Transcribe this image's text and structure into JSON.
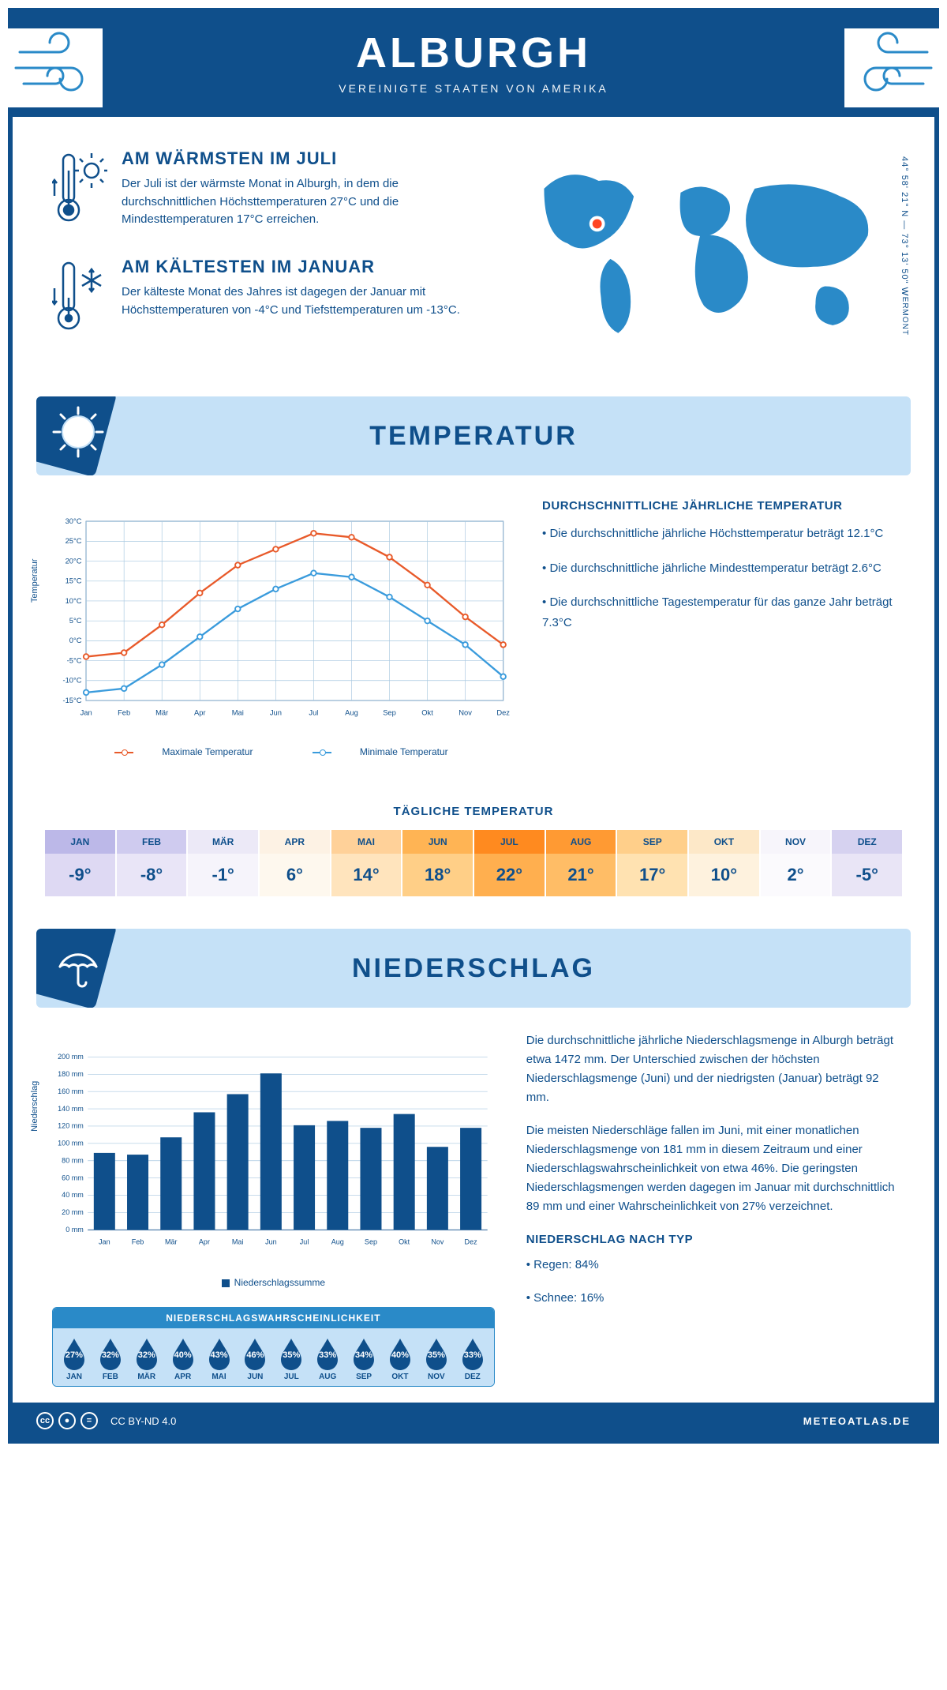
{
  "header": {
    "city": "ALBURGH",
    "country": "VEREINIGTE STAATEN VON AMERIKA"
  },
  "intro": {
    "warm": {
      "title": "AM WÄRMSTEN IM JULI",
      "text": "Der Juli ist der wärmste Monat in Alburgh, in dem die durchschnittlichen Höchsttemperaturen 27°C und die Mindesttemperaturen 17°C erreichen."
    },
    "cold": {
      "title": "AM KÄLTESTEN IM JANUAR",
      "text": "Der kälteste Monat des Jahres ist dagegen der Januar mit Höchsttemperaturen von -4°C und Tiefsttemperaturen um -13°C."
    },
    "coords": "44° 58' 21\" N — 73° 13' 50\" W",
    "state": "VERMONT"
  },
  "temp_banner": "TEMPERATUR",
  "temp_chart": {
    "months": [
      "Jan",
      "Feb",
      "Mär",
      "Apr",
      "Mai",
      "Jun",
      "Jul",
      "Aug",
      "Sep",
      "Okt",
      "Nov",
      "Dez"
    ],
    "max": [
      -4,
      -3,
      4,
      12,
      19,
      23,
      27,
      26,
      21,
      14,
      6,
      -1
    ],
    "min": [
      -13,
      -12,
      -6,
      1,
      8,
      13,
      17,
      16,
      11,
      5,
      -1,
      -9
    ],
    "ylim": [
      -15,
      30
    ],
    "ystep": 5,
    "max_color": "#e85a2a",
    "min_color": "#3a9bdc",
    "grid_color": "#a8c8e0",
    "axis_color": "#0f4f8b",
    "ylabel": "Temperatur",
    "legend_max": "Maximale Temperatur",
    "legend_min": "Minimale Temperatur"
  },
  "temp_info": {
    "title": "DURCHSCHNITTLICHE JÄHRLICHE TEMPERATUR",
    "b1": "• Die durchschnittliche jährliche Höchsttemperatur beträgt 12.1°C",
    "b2": "• Die durchschnittliche jährliche Mindesttemperatur beträgt 2.6°C",
    "b3": "• Die durchschnittliche Tagestemperatur für das ganze Jahr beträgt 7.3°C"
  },
  "daily": {
    "title": "TÄGLICHE TEMPERATUR",
    "months": [
      "JAN",
      "FEB",
      "MÄR",
      "APR",
      "MAI",
      "JUN",
      "JUL",
      "AUG",
      "SEP",
      "OKT",
      "NOV",
      "DEZ"
    ],
    "values": [
      "-9°",
      "-8°",
      "-1°",
      "6°",
      "14°",
      "18°",
      "22°",
      "21°",
      "17°",
      "10°",
      "2°",
      "-5°"
    ],
    "hdr_colors": [
      "#bcb8e8",
      "#cfcbef",
      "#ece9f7",
      "#fdf2e4",
      "#ffd199",
      "#ffb454",
      "#ff8a1f",
      "#ff9a33",
      "#ffcf8a",
      "#fde8c8",
      "#f7f5fb",
      "#d6d2f0"
    ],
    "val_colors": [
      "#ded9f3",
      "#e9e5f7",
      "#f6f4fb",
      "#fef8ee",
      "#ffe4bd",
      "#ffcf87",
      "#ffaf4f",
      "#ffbd66",
      "#ffe2b1",
      "#fef2de",
      "#fbfafd",
      "#e9e5f6"
    ]
  },
  "precip_banner": "NIEDERSCHLAG",
  "precip_chart": {
    "months": [
      "Jan",
      "Feb",
      "Mär",
      "Apr",
      "Mai",
      "Jun",
      "Jul",
      "Aug",
      "Sep",
      "Okt",
      "Nov",
      "Dez"
    ],
    "values": [
      89,
      87,
      107,
      136,
      157,
      181,
      121,
      126,
      118,
      134,
      96,
      118
    ],
    "ylim": [
      0,
      200
    ],
    "ystep": 20,
    "bar_color": "#0f4f8b",
    "grid_color": "#a8c8e0",
    "ylabel": "Niederschlag",
    "legend": "Niederschlagssumme"
  },
  "precip_text": {
    "p1": "Die durchschnittliche jährliche Niederschlagsmenge in Alburgh beträgt etwa 1472 mm. Der Unterschied zwischen der höchsten Niederschlagsmenge (Juni) und der niedrigsten (Januar) beträgt 92 mm.",
    "p2": "Die meisten Niederschläge fallen im Juni, mit einer monatlichen Niederschlagsmenge von 181 mm in diesem Zeitraum und einer Niederschlagswahrscheinlichkeit von etwa 46%. Die geringsten Niederschlagsmengen werden dagegen im Januar mit durchschnittlich 89 mm und einer Wahrscheinlichkeit von 27% verzeichnet.",
    "type_title": "NIEDERSCHLAG NACH TYP",
    "type1": "• Regen: 84%",
    "type2": "• Schnee: 16%"
  },
  "prob": {
    "title": "NIEDERSCHLAGSWAHRSCHEINLICHKEIT",
    "months": [
      "JAN",
      "FEB",
      "MÄR",
      "APR",
      "MAI",
      "JUN",
      "JUL",
      "AUG",
      "SEP",
      "OKT",
      "NOV",
      "DEZ"
    ],
    "pct": [
      "27%",
      "32%",
      "32%",
      "40%",
      "43%",
      "46%",
      "35%",
      "33%",
      "34%",
      "40%",
      "35%",
      "33%"
    ],
    "drop_color": "#0f4f8b"
  },
  "footer": {
    "license": "CC BY-ND 4.0",
    "site": "METEOATLAS.DE"
  }
}
